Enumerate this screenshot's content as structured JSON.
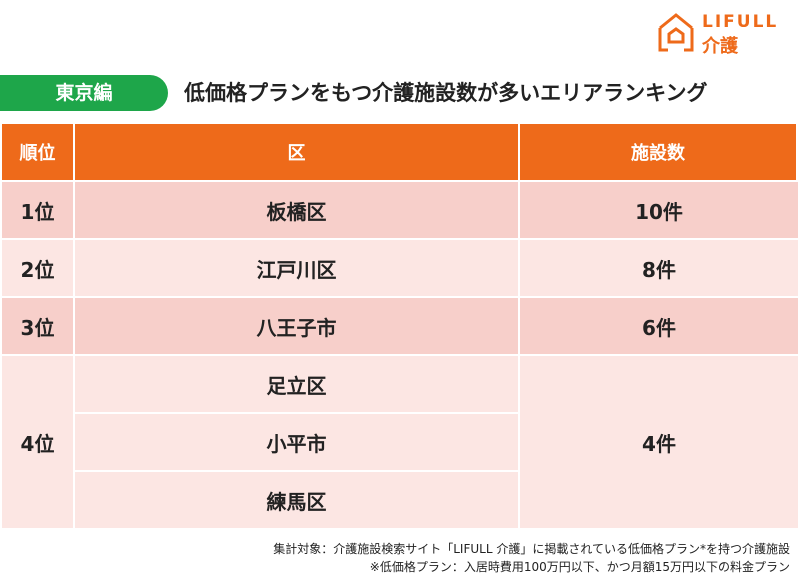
{
  "logo": {
    "brand": "LIFULL",
    "service": "介護"
  },
  "badge": "東京編",
  "title": "低価格プランをもつ介護施設数が多いエリアランキング",
  "table": {
    "headers": [
      "順位",
      "区",
      "施設数"
    ],
    "rows": [
      {
        "rank": "1位",
        "areas": [
          "板橋区"
        ],
        "count": "10件"
      },
      {
        "rank": "2位",
        "areas": [
          "江戸川区"
        ],
        "count": "8件"
      },
      {
        "rank": "3位",
        "areas": [
          "八王子市"
        ],
        "count": "6件"
      },
      {
        "rank": "4位",
        "areas": [
          "足立区",
          "小平市",
          "練馬区"
        ],
        "count": "4件"
      }
    ]
  },
  "notes": [
    "集計対象：介護施設検索サイト「LIFULL 介護」に掲載されている低価格プラン*を持つ介護施設",
    "※低価格プラン：入居時費用100万円以下、かつ月額15万円以下の料金プラン"
  ]
}
